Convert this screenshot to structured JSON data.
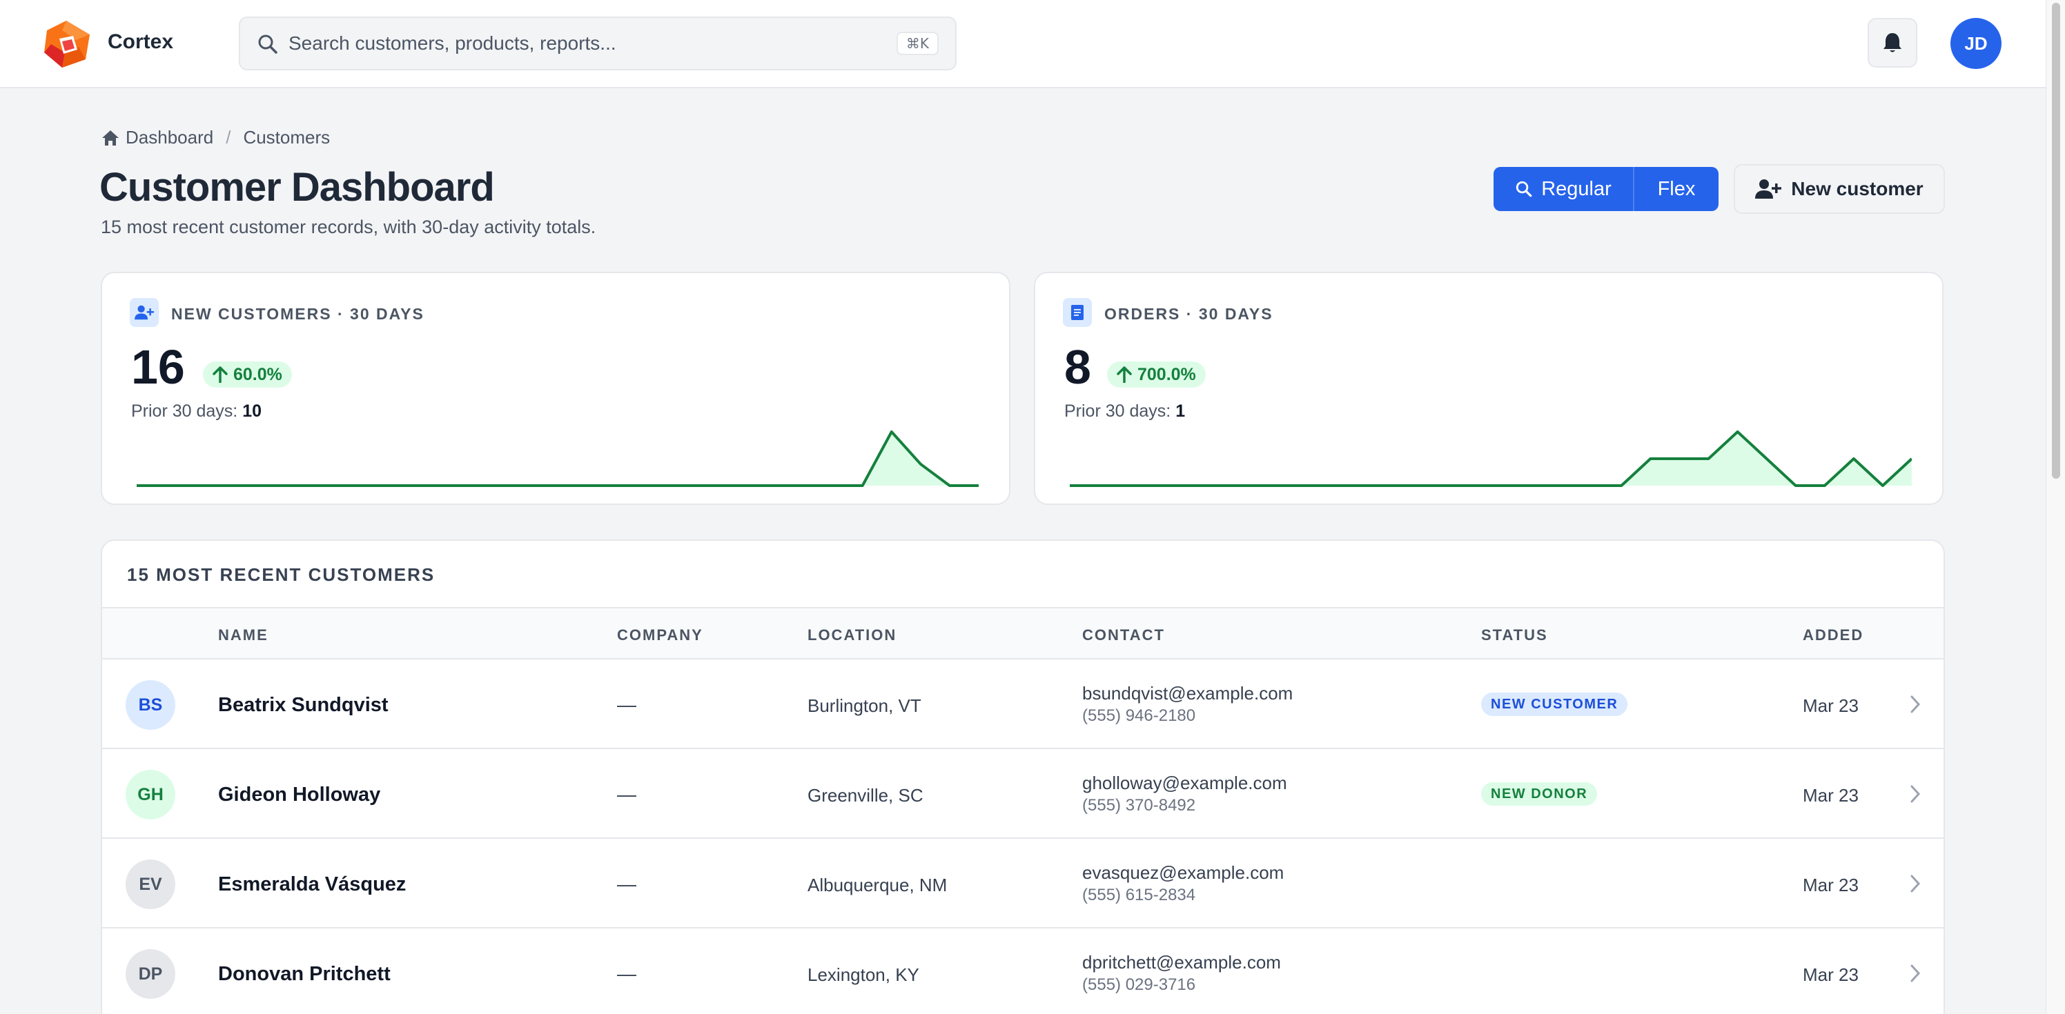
{
  "app": {
    "brand": "Cortex",
    "search_placeholder": "Search customers, products, reports...",
    "search_shortcut": "⌘K",
    "user_initials": "JD"
  },
  "breadcrumb": [
    "Dashboard",
    "Customers"
  ],
  "page": {
    "title": "Customer Dashboard",
    "subtitle": "15 most recent customer records, with 30-day activity totals."
  },
  "view_toggle": {
    "options": [
      "Regular",
      "Flex"
    ],
    "selected": "Regular"
  },
  "new_customer_label": "New customer",
  "stats": [
    {
      "label": "NEW CUSTOMERS · 30 DAYS",
      "value": "16",
      "change": "60.0%",
      "prior_label": "Prior 30 days:",
      "prior_value": "10",
      "sparkline": [
        0,
        0,
        0,
        0,
        0,
        0,
        0,
        0,
        0,
        0,
        0,
        0,
        0,
        0,
        0,
        0,
        0,
        0,
        0,
        0,
        0,
        0,
        0,
        0,
        0,
        0,
        3,
        1.2,
        0,
        0
      ]
    },
    {
      "label": "ORDERS · 30 DAYS",
      "value": "8",
      "change": "700.0%",
      "prior_label": "Prior 30 days:",
      "prior_value": "1",
      "sparkline": [
        0,
        0,
        0,
        0,
        0,
        0,
        0,
        0,
        0,
        0,
        0,
        0,
        0,
        0,
        0,
        0,
        0,
        0,
        0,
        0,
        1,
        1,
        1,
        2,
        1,
        0,
        0,
        1,
        0,
        1
      ]
    }
  ],
  "table": {
    "title": "15 MOST RECENT CUSTOMERS",
    "columns": [
      "NAME",
      "COMPANY",
      "LOCATION",
      "CONTACT",
      "STATUS",
      "ADDED"
    ],
    "rows": [
      {
        "initials": "BS",
        "name": "Beatrix Sundqvist",
        "company": "—",
        "location": "Burlington, VT",
        "email": "bsundqvist@example.com",
        "phone": "(555) 946-2180",
        "status": "NEW CUSTOMER",
        "added": "Mar 23"
      },
      {
        "initials": "GH",
        "name": "Gideon Holloway",
        "company": "—",
        "location": "Greenville, SC",
        "email": "gholloway@example.com",
        "phone": "(555) 370-8492",
        "status": "NEW DONOR",
        "added": "Mar 23"
      },
      {
        "initials": "EV",
        "name": "Esmeralda Vásquez",
        "company": "—",
        "location": "Albuquerque, NM",
        "email": "evasquez@example.com",
        "phone": "(555) 615-2834",
        "status": "",
        "added": "Mar 23"
      },
      {
        "initials": "DP",
        "name": "Donovan Pritchett",
        "company": "—",
        "location": "Lexington, KY",
        "email": "dpritchett@example.com",
        "phone": "(555) 029-3716",
        "status": "",
        "added": "Mar 23"
      }
    ]
  },
  "colors": {
    "accent": "#2563eb",
    "positive": "#15803d",
    "positive_bg": "#dcfce7",
    "badge_blue_bg": "#dbeafe",
    "badge_blue_fg": "#1d4ed8",
    "badge_green_bg": "#dcfce7",
    "badge_green_fg": "#15803d"
  },
  "icons": {
    "logo": "cortex-logo-icon",
    "search": "search-icon",
    "bell": "bell-icon",
    "home": "home-icon",
    "user_plus": "user-plus-icon",
    "document": "document-icon",
    "arrow_up": "arrow-up-icon",
    "chevron_right": "chevron-right-icon"
  }
}
